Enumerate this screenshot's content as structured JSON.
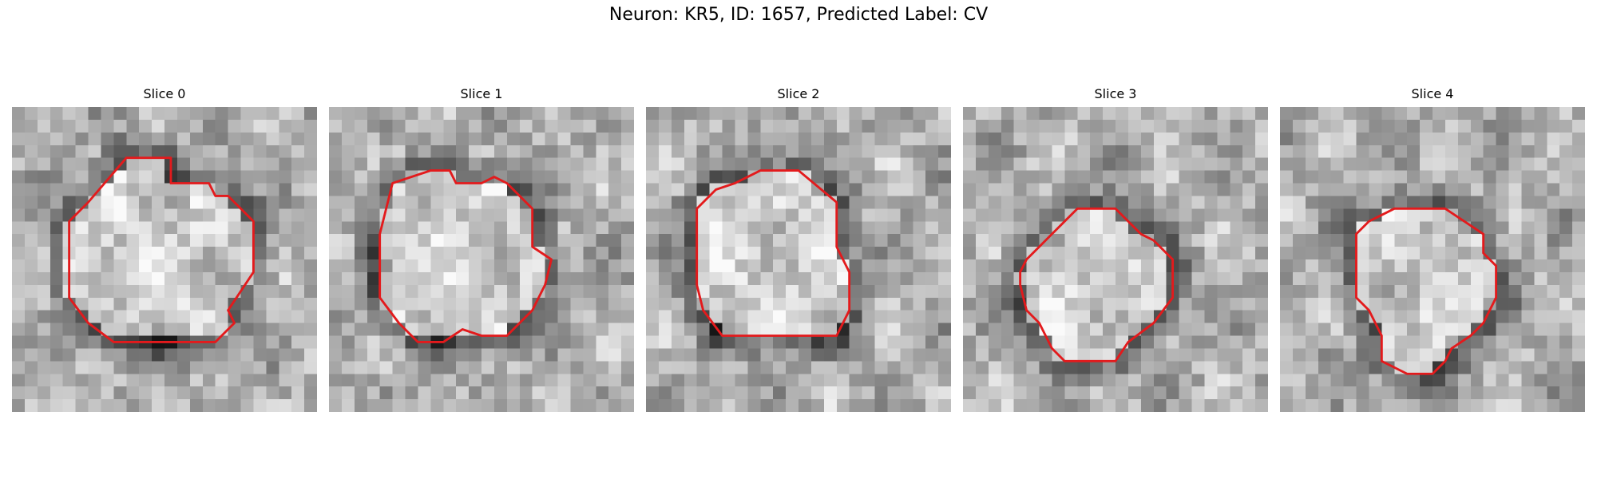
{
  "figure": {
    "title": "Neuron: KR5, ID: 1657, Predicted Label: CV",
    "outline_color": "#e31a1c",
    "slices": [
      {
        "label": "Slice 0",
        "seed": 11,
        "contour": [
          [
            12.5,
            6
          ],
          [
            15.5,
            6
          ],
          [
            16,
            7
          ],
          [
            17,
            7
          ],
          [
            19,
            9
          ],
          [
            19,
            13
          ],
          [
            17,
            16
          ],
          [
            17.5,
            17
          ],
          [
            17,
            17.5
          ],
          [
            16,
            18.5
          ],
          [
            8,
            18.5
          ],
          [
            6,
            17
          ],
          [
            4.5,
            15
          ],
          [
            4.5,
            9
          ],
          [
            6,
            7.5
          ],
          [
            9,
            4
          ],
          [
            12.5,
            4
          ]
        ]
      },
      {
        "label": "Slice 1",
        "seed": 23,
        "contour": [
          [
            8,
            5
          ],
          [
            9.5,
            5
          ],
          [
            10,
            6
          ],
          [
            12,
            6
          ],
          [
            13,
            5.5
          ],
          [
            14,
            6
          ],
          [
            16,
            8
          ],
          [
            16,
            11
          ],
          [
            17.5,
            12
          ],
          [
            17,
            14
          ],
          [
            16,
            16
          ],
          [
            14,
            18
          ],
          [
            12,
            18
          ],
          [
            10.5,
            17.5
          ],
          [
            9,
            18.5
          ],
          [
            7,
            18.5
          ],
          [
            5.5,
            17
          ],
          [
            4,
            15
          ],
          [
            4,
            10
          ],
          [
            4.5,
            8
          ],
          [
            5,
            6
          ],
          [
            6.5,
            5.5
          ]
        ]
      },
      {
        "label": "Slice 2",
        "seed": 37,
        "contour": [
          [
            9,
            5
          ],
          [
            12,
            5
          ],
          [
            15,
            7.5
          ],
          [
            15,
            11
          ],
          [
            16,
            13
          ],
          [
            16,
            16
          ],
          [
            15,
            18
          ],
          [
            10,
            18
          ],
          [
            6,
            18
          ],
          [
            4.5,
            16
          ],
          [
            4,
            14
          ],
          [
            4,
            8
          ],
          [
            5.5,
            6.5
          ],
          [
            7,
            6
          ],
          [
            8,
            5.5
          ]
        ]
      },
      {
        "label": "Slice 3",
        "seed": 41,
        "contour": [
          [
            9,
            8
          ],
          [
            12,
            8
          ],
          [
            14,
            10
          ],
          [
            15,
            10.5
          ],
          [
            16.5,
            12
          ],
          [
            16.5,
            15
          ],
          [
            15,
            17
          ],
          [
            13,
            18.5
          ],
          [
            12,
            20
          ],
          [
            10,
            20
          ],
          [
            8,
            20
          ],
          [
            7,
            19
          ],
          [
            6,
            17
          ],
          [
            5,
            16
          ],
          [
            4.5,
            14
          ],
          [
            4.5,
            13
          ],
          [
            5,
            12
          ],
          [
            6,
            11
          ],
          [
            7,
            10
          ],
          [
            8,
            9
          ]
        ]
      },
      {
        "label": "Slice 4",
        "seed": 53,
        "contour": [
          [
            9,
            8
          ],
          [
            13,
            8
          ],
          [
            16,
            10
          ],
          [
            16,
            11.5
          ],
          [
            17,
            12.5
          ],
          [
            17,
            15
          ],
          [
            16,
            17
          ],
          [
            15,
            18
          ],
          [
            13.5,
            19
          ],
          [
            13,
            20
          ],
          [
            12,
            21
          ],
          [
            10,
            21
          ],
          [
            8,
            20
          ],
          [
            8,
            18
          ],
          [
            7,
            16
          ],
          [
            6,
            15
          ],
          [
            6,
            10
          ],
          [
            7,
            9
          ],
          [
            8,
            8.5
          ]
        ]
      }
    ]
  }
}
